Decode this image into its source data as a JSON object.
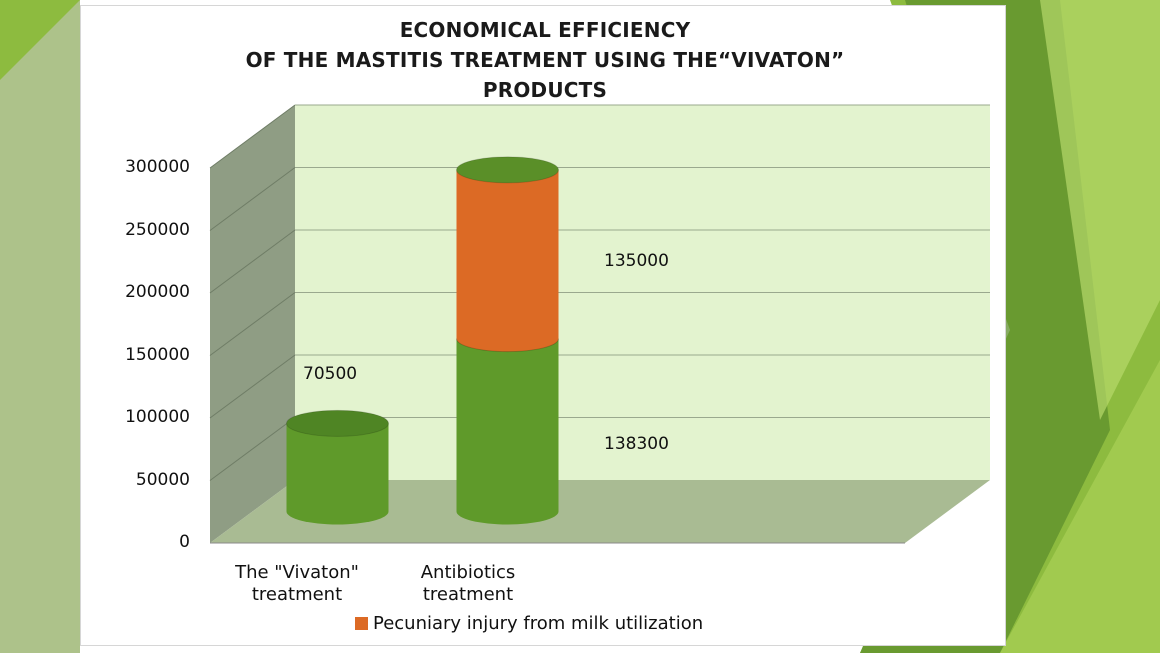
{
  "colors": {
    "slide_green": "#8dbb3f",
    "slide_dark_green": "#5e8f2c",
    "wall": "#e3f3cf",
    "side_wall": "#8f9d84",
    "floor": "#a9bb93",
    "bar_green": "#5f9a2a",
    "bar_orange": "#dc6a25"
  },
  "chart_data": {
    "type": "bar",
    "stacked": true,
    "style": "3d-cylinder",
    "title_lines": [
      "ECONOMICAL EFFICIENCY",
      "OF THE MASTITIS TREATMENT USING THE“VIVATON”",
      "PRODUCTS"
    ],
    "categories": [
      "The \"Vivaton\" treatment",
      "Antibiotics treatment"
    ],
    "category_lines": [
      [
        "The \"Vivaton\"",
        "treatment"
      ],
      [
        "Antibiotics",
        "treatment"
      ]
    ],
    "series": [
      {
        "values": [
          70500,
          138300
        ],
        "color": "#5f9a2a"
      },
      {
        "name": "Pecuniary injury from milk utilization",
        "values": [
          0,
          135000
        ],
        "color": "#dc6a25"
      }
    ],
    "data_labels": [
      "70500",
      "138300",
      "135000"
    ],
    "yticks": [
      "0",
      "50000",
      "100000",
      "150000",
      "200000",
      "250000",
      "300000"
    ],
    "ylim": [
      0,
      300000
    ],
    "grid": true,
    "legend": "bottom"
  }
}
